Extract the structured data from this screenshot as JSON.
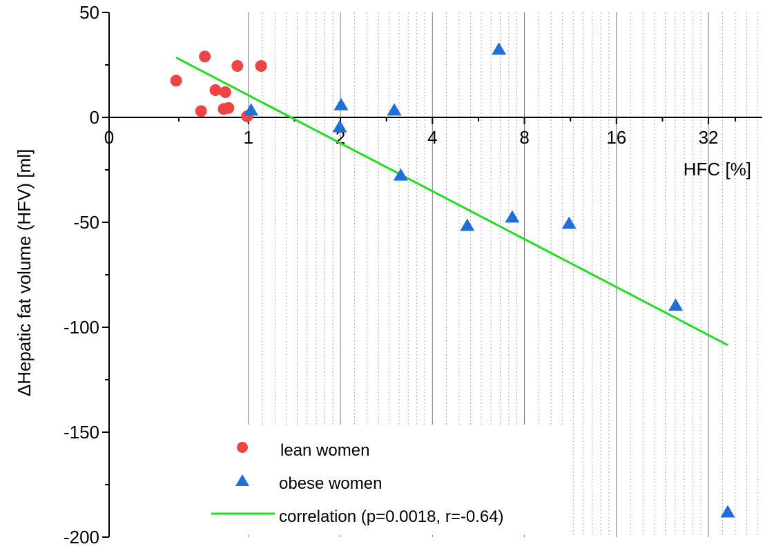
{
  "chart_data": {
    "type": "scatter",
    "x_scale": "log2",
    "xlabel": "HFC [%]",
    "ylabel": "ΔHepatic fat volume (HFV) [ml]",
    "xlim": [
      0.35,
      48
    ],
    "ylim": [
      -200,
      50
    ],
    "x_ticks": [
      {
        "value": 0.35,
        "label": "0"
      },
      {
        "value": 1,
        "label": "1"
      },
      {
        "value": 2,
        "label": "2"
      },
      {
        "value": 4,
        "label": "4"
      },
      {
        "value": 8,
        "label": "8"
      },
      {
        "value": 16,
        "label": "16"
      },
      {
        "value": 32,
        "label": "32"
      }
    ],
    "y_ticks": [
      {
        "value": 50,
        "label": "50"
      },
      {
        "value": 0,
        "label": "0"
      },
      {
        "value": -50,
        "label": "-50"
      },
      {
        "value": -100,
        "label": "-100"
      },
      {
        "value": -150,
        "label": "-150"
      },
      {
        "value": -200,
        "label": "-200"
      }
    ],
    "grid": {
      "major_x": true,
      "minor_x": true,
      "y": false
    },
    "series": [
      {
        "name": "lean women",
        "marker": "circle",
        "color": "#ee4444",
        "points": [
          {
            "x": 0.58,
            "y": 17.5
          },
          {
            "x": 0.72,
            "y": 29
          },
          {
            "x": 0.7,
            "y": 3
          },
          {
            "x": 0.78,
            "y": 13
          },
          {
            "x": 0.84,
            "y": 12
          },
          {
            "x": 0.83,
            "y": 4
          },
          {
            "x": 0.86,
            "y": 4.5
          },
          {
            "x": 0.92,
            "y": 24.5
          },
          {
            "x": 1.1,
            "y": 24.5
          },
          {
            "x": 0.99,
            "y": 0.5
          }
        ]
      },
      {
        "name": "obese women",
        "marker": "triangle",
        "color": "#1f6fd6",
        "points": [
          {
            "x": 1.02,
            "y": 3.5
          },
          {
            "x": 2.01,
            "y": 6
          },
          {
            "x": 1.99,
            "y": -4.5
          },
          {
            "x": 3.0,
            "y": 3.5
          },
          {
            "x": 3.15,
            "y": -27.5
          },
          {
            "x": 5.2,
            "y": -51.5
          },
          {
            "x": 6.6,
            "y": 32.5
          },
          {
            "x": 7.3,
            "y": -47.5
          },
          {
            "x": 11.2,
            "y": -50.5
          },
          {
            "x": 25.0,
            "y": -89.5
          },
          {
            "x": 37.0,
            "y": -188
          }
        ]
      }
    ],
    "fit_line": {
      "name": "correlation (p=0.0018, r=-0.64)",
      "color": "#22dd22",
      "points": [
        {
          "x": 0.58,
          "y": 28.5
        },
        {
          "x": 37.0,
          "y": -108.5
        }
      ]
    },
    "legend": {
      "position": "bottom-center"
    }
  }
}
